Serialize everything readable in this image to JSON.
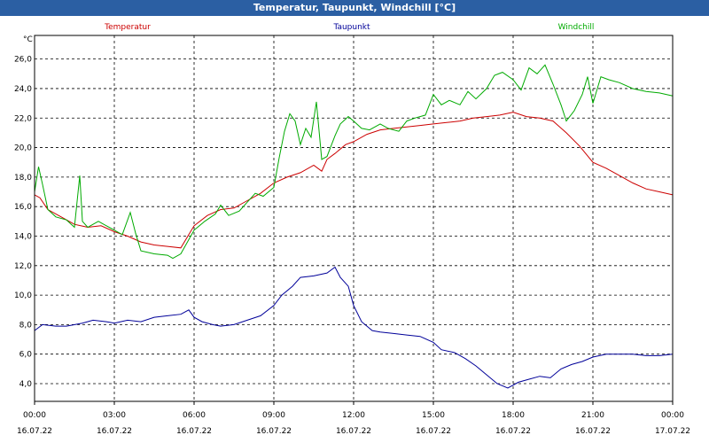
{
  "window": {
    "title": "Temperatur, Taupunkt, Windchill [°C]"
  },
  "chart_data": {
    "type": "line",
    "ylabel": "°C",
    "ylim": [
      2.8,
      27.6
    ],
    "xlim": [
      0,
      24
    ],
    "yticks": [
      "4,0",
      "6,0",
      "8,0",
      "10,0",
      "12,0",
      "14,0",
      "16,0",
      "18,0",
      "20,0",
      "22,0",
      "24,0",
      "26,0"
    ],
    "ytick_values": [
      4,
      6,
      8,
      10,
      12,
      14,
      16,
      18,
      20,
      22,
      24,
      26
    ],
    "xticks": [
      {
        "h": 0,
        "time": "00:00",
        "date": "16.07.22"
      },
      {
        "h": 3,
        "time": "03:00",
        "date": "16.07.22"
      },
      {
        "h": 6,
        "time": "06:00",
        "date": "16.07.22"
      },
      {
        "h": 9,
        "time": "09:00",
        "date": "16.07.22"
      },
      {
        "h": 12,
        "time": "12:00",
        "date": "16.07.22"
      },
      {
        "h": 15,
        "time": "15:00",
        "date": "16.07.22"
      },
      {
        "h": 18,
        "time": "18:00",
        "date": "16.07.22"
      },
      {
        "h": 21,
        "time": "21:00",
        "date": "16.07.22"
      },
      {
        "h": 24,
        "time": "00:00",
        "date": "17.07.22"
      }
    ],
    "grid": true,
    "series": [
      {
        "name": "Temperatur",
        "color": "#cc0000",
        "points": [
          [
            0,
            16.8
          ],
          [
            0.2,
            16.6
          ],
          [
            0.5,
            15.8
          ],
          [
            1,
            15.3
          ],
          [
            1.5,
            14.8
          ],
          [
            2,
            14.6
          ],
          [
            2.5,
            14.7
          ],
          [
            3,
            14.3
          ],
          [
            3.5,
            14.0
          ],
          [
            4,
            13.6
          ],
          [
            4.5,
            13.4
          ],
          [
            5,
            13.3
          ],
          [
            5.5,
            13.2
          ],
          [
            6,
            14.7
          ],
          [
            6.5,
            15.4
          ],
          [
            7,
            15.8
          ],
          [
            7.5,
            15.9
          ],
          [
            8,
            16.4
          ],
          [
            8.5,
            16.9
          ],
          [
            9,
            17.6
          ],
          [
            9.5,
            18.0
          ],
          [
            10,
            18.3
          ],
          [
            10.5,
            18.8
          ],
          [
            10.8,
            18.4
          ],
          [
            11,
            19.2
          ],
          [
            11.3,
            19.6
          ],
          [
            11.7,
            20.2
          ],
          [
            12,
            20.4
          ],
          [
            12.5,
            20.9
          ],
          [
            13,
            21.2
          ],
          [
            13.5,
            21.3
          ],
          [
            14,
            21.4
          ],
          [
            14.5,
            21.5
          ],
          [
            15,
            21.6
          ],
          [
            15.5,
            21.7
          ],
          [
            16,
            21.8
          ],
          [
            16.5,
            22.0
          ],
          [
            17,
            22.1
          ],
          [
            17.5,
            22.2
          ],
          [
            18,
            22.4
          ],
          [
            18.5,
            22.1
          ],
          [
            19,
            22.0
          ],
          [
            19.5,
            21.8
          ],
          [
            20,
            21.0
          ],
          [
            20.5,
            20.1
          ],
          [
            21,
            19.0
          ],
          [
            21.5,
            18.6
          ],
          [
            22,
            18.1
          ],
          [
            22.5,
            17.6
          ],
          [
            23,
            17.2
          ],
          [
            23.5,
            17.0
          ],
          [
            24,
            16.8
          ]
        ]
      },
      {
        "name": "Taupunkt",
        "color": "#000099",
        "points": [
          [
            0,
            7.6
          ],
          [
            0.3,
            8.0
          ],
          [
            0.8,
            7.9
          ],
          [
            1.2,
            7.9
          ],
          [
            1.8,
            8.1
          ],
          [
            2.2,
            8.3
          ],
          [
            2.7,
            8.2
          ],
          [
            3,
            8.1
          ],
          [
            3.5,
            8.3
          ],
          [
            4,
            8.2
          ],
          [
            4.5,
            8.5
          ],
          [
            5,
            8.6
          ],
          [
            5.5,
            8.7
          ],
          [
            5.8,
            9.0
          ],
          [
            6,
            8.5
          ],
          [
            6.3,
            8.2
          ],
          [
            6.7,
            8.0
          ],
          [
            7,
            7.9
          ],
          [
            7.5,
            8.0
          ],
          [
            8,
            8.3
          ],
          [
            8.5,
            8.6
          ],
          [
            9,
            9.3
          ],
          [
            9.3,
            10.0
          ],
          [
            9.7,
            10.6
          ],
          [
            10,
            11.2
          ],
          [
            10.5,
            11.3
          ],
          [
            11,
            11.5
          ],
          [
            11.3,
            11.9
          ],
          [
            11.5,
            11.2
          ],
          [
            11.8,
            10.6
          ],
          [
            12,
            9.3
          ],
          [
            12.3,
            8.2
          ],
          [
            12.7,
            7.6
          ],
          [
            13,
            7.5
          ],
          [
            13.5,
            7.4
          ],
          [
            14,
            7.3
          ],
          [
            14.5,
            7.2
          ],
          [
            15,
            6.8
          ],
          [
            15.3,
            6.3
          ],
          [
            15.8,
            6.1
          ],
          [
            16.2,
            5.7
          ],
          [
            16.6,
            5.2
          ],
          [
            17,
            4.6
          ],
          [
            17.4,
            4.0
          ],
          [
            17.8,
            3.7
          ],
          [
            18.2,
            4.1
          ],
          [
            18.6,
            4.3
          ],
          [
            19,
            4.5
          ],
          [
            19.4,
            4.4
          ],
          [
            19.8,
            5.0
          ],
          [
            20.2,
            5.3
          ],
          [
            20.6,
            5.5
          ],
          [
            21,
            5.8
          ],
          [
            21.5,
            6.0
          ],
          [
            22,
            6.0
          ],
          [
            22.5,
            6.0
          ],
          [
            23,
            5.9
          ],
          [
            23.5,
            5.9
          ],
          [
            24,
            6.0
          ]
        ]
      },
      {
        "name": "Windchill",
        "color": "#00aa00",
        "points": [
          [
            0,
            17.0
          ],
          [
            0.15,
            18.7
          ],
          [
            0.3,
            17.5
          ],
          [
            0.5,
            15.8
          ],
          [
            0.8,
            15.3
          ],
          [
            1.2,
            15.1
          ],
          [
            1.5,
            14.6
          ],
          [
            1.7,
            18.1
          ],
          [
            1.8,
            15.0
          ],
          [
            2,
            14.6
          ],
          [
            2.4,
            15.0
          ],
          [
            2.7,
            14.7
          ],
          [
            3,
            14.4
          ],
          [
            3.3,
            14.1
          ],
          [
            3.6,
            15.6
          ],
          [
            3.8,
            14.2
          ],
          [
            4,
            13.0
          ],
          [
            4.5,
            12.8
          ],
          [
            5,
            12.7
          ],
          [
            5.2,
            12.5
          ],
          [
            5.5,
            12.8
          ],
          [
            6,
            14.4
          ],
          [
            6.4,
            15.0
          ],
          [
            6.8,
            15.5
          ],
          [
            7,
            16.1
          ],
          [
            7.3,
            15.4
          ],
          [
            7.7,
            15.7
          ],
          [
            8,
            16.3
          ],
          [
            8.3,
            16.9
          ],
          [
            8.6,
            16.7
          ],
          [
            9,
            17.3
          ],
          [
            9.2,
            19.3
          ],
          [
            9.4,
            21.1
          ],
          [
            9.6,
            22.3
          ],
          [
            9.8,
            21.8
          ],
          [
            10,
            20.2
          ],
          [
            10.2,
            21.3
          ],
          [
            10.4,
            20.7
          ],
          [
            10.6,
            23.1
          ],
          [
            10.8,
            19.2
          ],
          [
            11,
            19.4
          ],
          [
            11.3,
            20.8
          ],
          [
            11.5,
            21.6
          ],
          [
            11.8,
            22.1
          ],
          [
            12,
            21.8
          ],
          [
            12.3,
            21.3
          ],
          [
            12.6,
            21.2
          ],
          [
            13,
            21.6
          ],
          [
            13.3,
            21.3
          ],
          [
            13.7,
            21.1
          ],
          [
            14,
            21.8
          ],
          [
            14.3,
            22.0
          ],
          [
            14.7,
            22.2
          ],
          [
            15,
            23.6
          ],
          [
            15.3,
            22.9
          ],
          [
            15.6,
            23.2
          ],
          [
            16,
            22.9
          ],
          [
            16.3,
            23.8
          ],
          [
            16.6,
            23.3
          ],
          [
            17,
            24.0
          ],
          [
            17.3,
            24.9
          ],
          [
            17.6,
            25.1
          ],
          [
            18,
            24.6
          ],
          [
            18.3,
            23.9
          ],
          [
            18.6,
            25.4
          ],
          [
            18.9,
            25.0
          ],
          [
            19.2,
            25.6
          ],
          [
            19.5,
            24.3
          ],
          [
            19.8,
            22.9
          ],
          [
            20,
            21.8
          ],
          [
            20.3,
            22.5
          ],
          [
            20.6,
            23.6
          ],
          [
            20.8,
            24.8
          ],
          [
            21,
            23.0
          ],
          [
            21.3,
            24.8
          ],
          [
            21.6,
            24.6
          ],
          [
            22,
            24.4
          ],
          [
            22.5,
            24.0
          ],
          [
            23,
            23.8
          ],
          [
            23.5,
            23.7
          ],
          [
            24,
            23.5
          ]
        ]
      }
    ]
  }
}
